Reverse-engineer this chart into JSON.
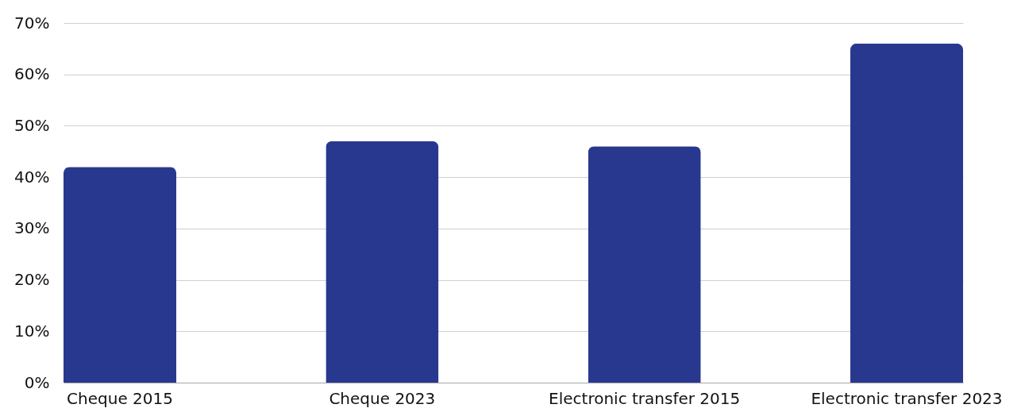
{
  "chart_data": {
    "type": "bar",
    "categories": [
      "Cheque 2015",
      "Cheque 2023",
      "Electronic transfer 2015",
      "Electronic transfer 2023"
    ],
    "values": [
      42,
      47,
      46,
      66
    ],
    "color": "#29388f",
    "ylim": [
      0,
      70
    ],
    "yticks": [
      {
        "value": 0,
        "label": "0%"
      },
      {
        "value": 10,
        "label": "10%"
      },
      {
        "value": 20,
        "label": "20%"
      },
      {
        "value": 30,
        "label": "30%"
      },
      {
        "value": 40,
        "label": "40%"
      },
      {
        "value": 50,
        "label": "50%"
      },
      {
        "value": 60,
        "label": "60%"
      },
      {
        "value": 70,
        "label": "70%"
      }
    ],
    "grid": "y"
  }
}
